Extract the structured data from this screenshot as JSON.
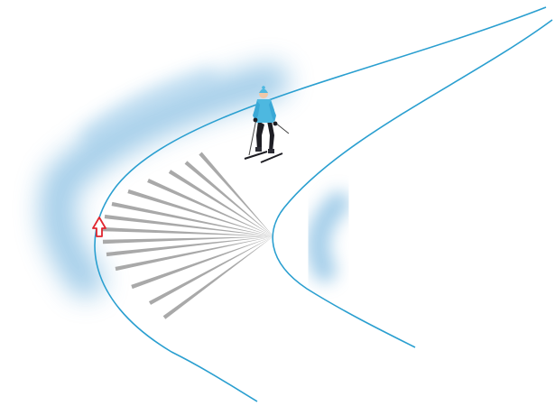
{
  "scene": {
    "background_color": "#ffffff",
    "track_color": "#2a9fd0",
    "snow_shadow_color": "#5aa6d8",
    "ray_color": "#a9a9a9",
    "arrow_color": "#e0262f",
    "skier_jacket_color": "#4db8e0",
    "skier_pants_color": "#1e1e24",
    "ray_count": 14,
    "icons": [
      "skier-figure",
      "up-arrow-icon"
    ]
  }
}
